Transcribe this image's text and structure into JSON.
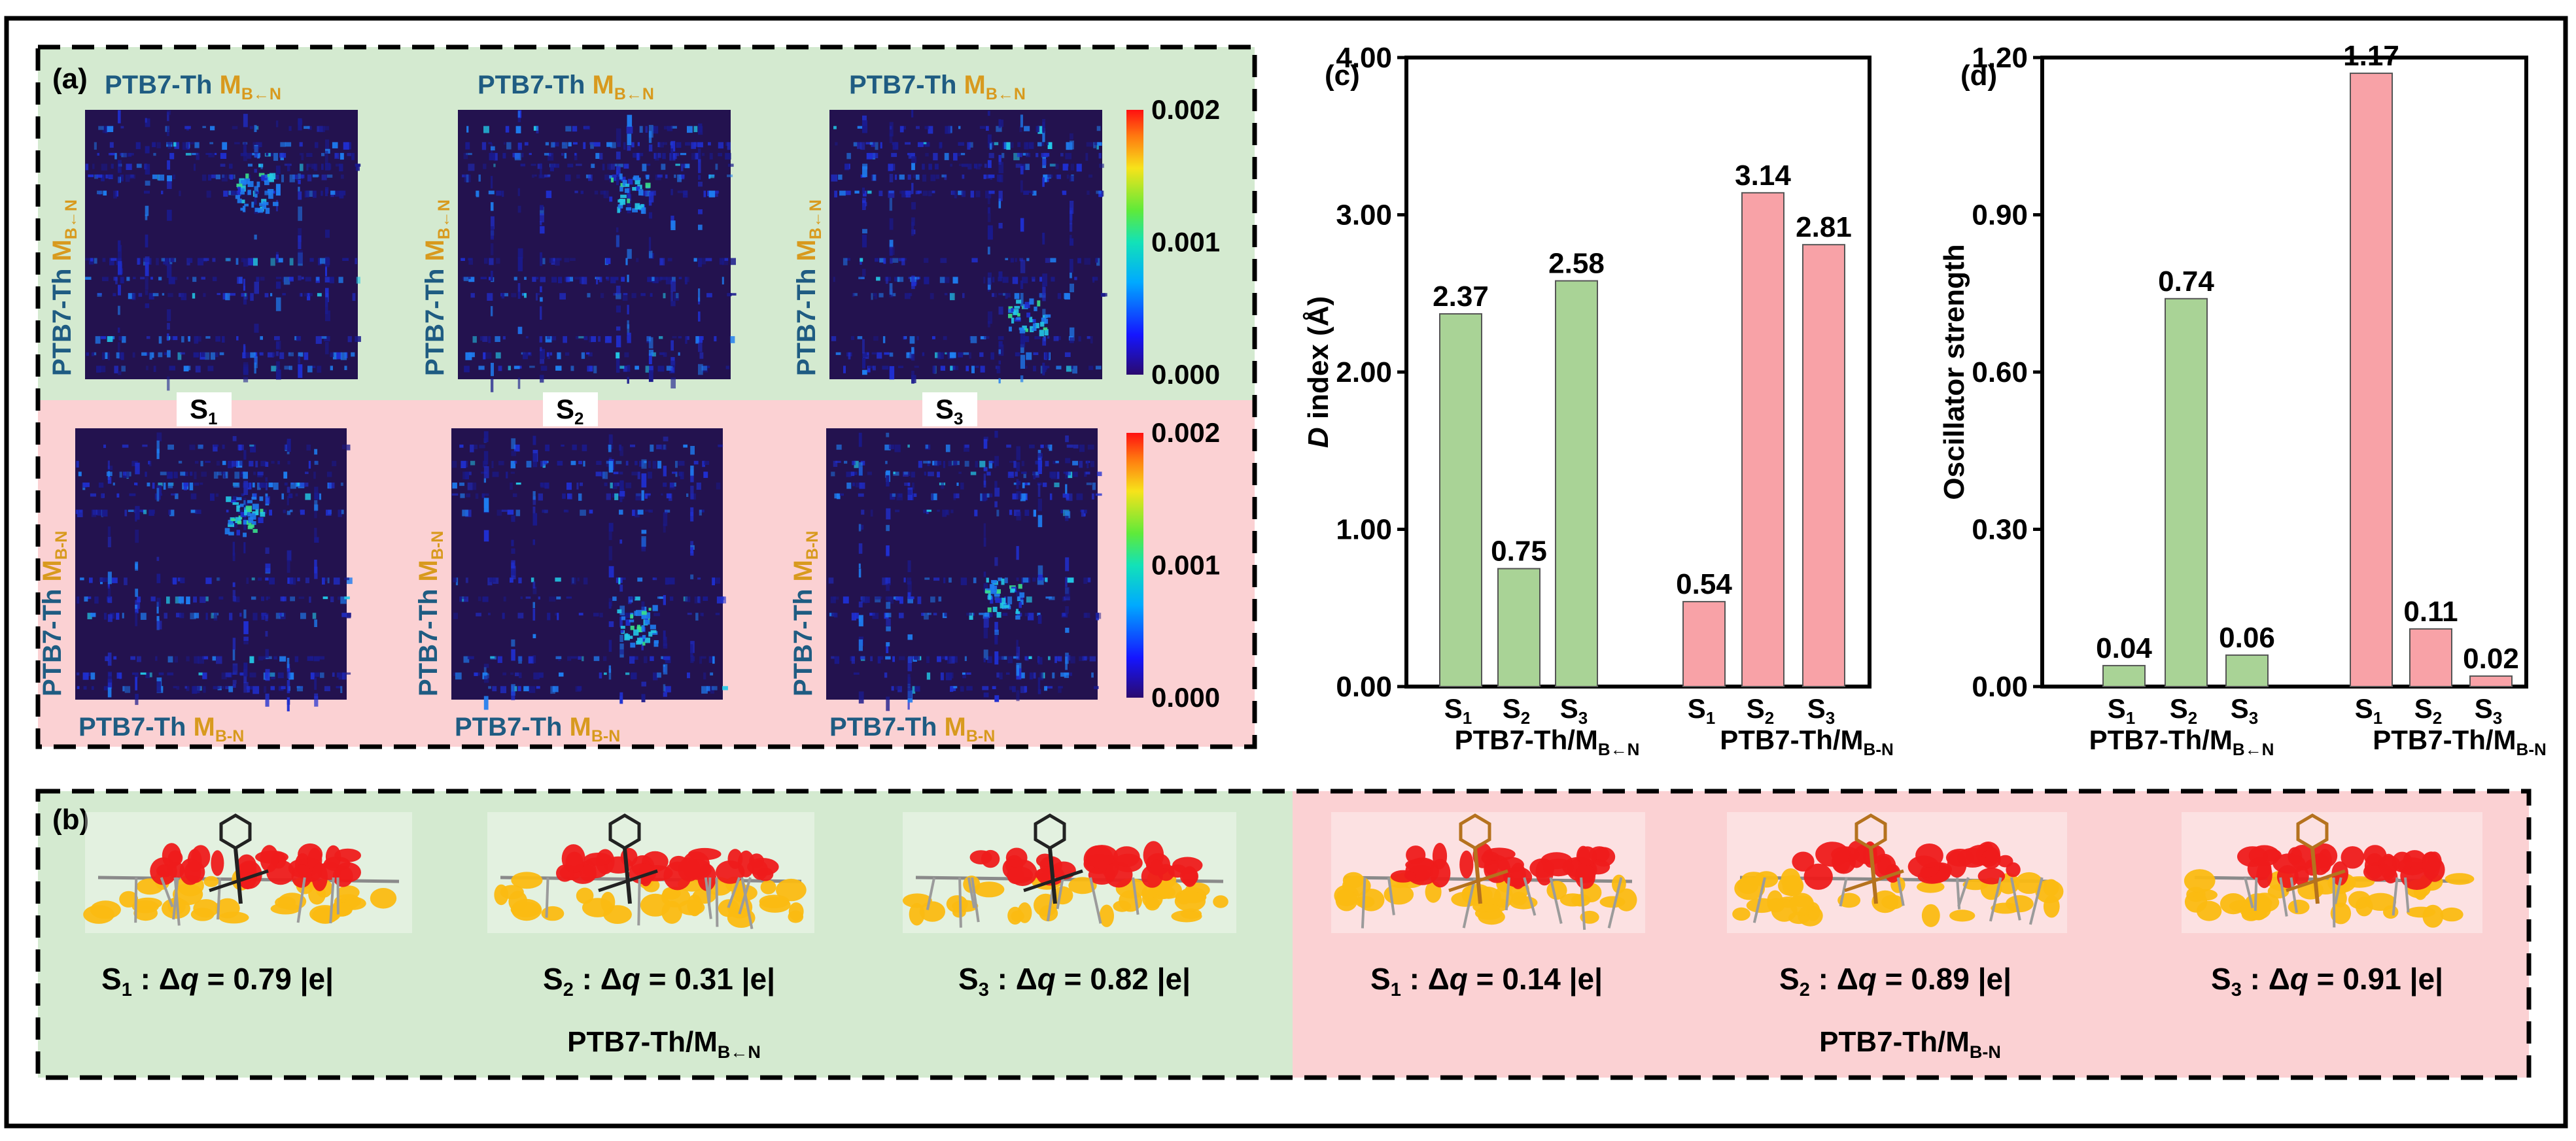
{
  "colors": {
    "green_bg": "#d4ead0",
    "pink_bg": "#fbd1d3",
    "green_bar": "#a9d396",
    "pink_bar": "#f8a2a7",
    "label_blue": "#1f5c82",
    "label_gold": "#d89a1e",
    "map_bg": "#23124f",
    "red_iso": "#ee1b1b",
    "yellow_iso": "#fbba12"
  },
  "panel_a": {
    "label": "(a)",
    "heatmaps": [
      {
        "top": "PTB7-Th",
        "top_suffix": "M",
        "top_sub": "B←N",
        "left_top": "M",
        "left_top_sub": "B←N",
        "left_bottom": "PTB7-Th",
        "variant": "s1a"
      },
      {
        "top": "PTB7-Th",
        "top_suffix": "M",
        "top_sub": "B←N",
        "left_top": "M",
        "left_top_sub": "B←N",
        "left_bottom": "PTB7-Th",
        "variant": "s2a"
      },
      {
        "top": "PTB7-Th",
        "top_suffix": "M",
        "top_sub": "B←N",
        "left_top": "M",
        "left_top_sub": "B←N",
        "left_bottom": "PTB7-Th",
        "variant": "s3a"
      },
      {
        "bottom": "PTB7-Th",
        "bottom_suffix": "M",
        "bottom_sub": "B-N",
        "left_top": "M",
        "left_top_sub": "B-N",
        "left_bottom": "PTB7-Th",
        "variant": "s1b"
      },
      {
        "bottom": "PTB7-Th",
        "bottom_suffix": "M",
        "bottom_sub": "B-N",
        "left_top": "M",
        "left_top_sub": "B-N",
        "left_bottom": "PTB7-Th",
        "variant": "s2b"
      },
      {
        "bottom": "PTB7-Th",
        "bottom_suffix": "M",
        "bottom_sub": "B-N",
        "left_top": "M",
        "left_top_sub": "B-N",
        "left_bottom": "PTB7-Th",
        "variant": "s3b"
      }
    ],
    "state_labels": [
      {
        "main": "S",
        "sub": "1"
      },
      {
        "main": "S",
        "sub": "2"
      },
      {
        "main": "S",
        "sub": "3"
      }
    ],
    "colorbar_ticks": [
      "0.002",
      "0.001",
      "0.000"
    ]
  },
  "chart_data": [
    {
      "type": "bar",
      "panel": "(c)",
      "ylabel_italic": "D",
      "ylabel_rest": " index (Å)",
      "ylim": [
        0,
        4
      ],
      "yticks": [
        "0.00",
        "1.00",
        "2.00",
        "3.00",
        "4.00"
      ],
      "ytick_values": [
        0,
        1,
        2,
        3,
        4
      ],
      "groups": [
        {
          "name": "PTB7-Th/M",
          "name_sub": "B←N",
          "color_key": "green_bar",
          "categories": [
            {
              "main": "S",
              "sub": "1"
            },
            {
              "main": "S",
              "sub": "2"
            },
            {
              "main": "S",
              "sub": "3"
            }
          ],
          "values": [
            2.37,
            0.75,
            2.58
          ],
          "labels": [
            "2.37",
            "0.75",
            "2.58"
          ]
        },
        {
          "name": "PTB7-Th/M",
          "name_sub": "B-N",
          "color_key": "pink_bar",
          "categories": [
            {
              "main": "S",
              "sub": "1"
            },
            {
              "main": "S",
              "sub": "2"
            },
            {
              "main": "S",
              "sub": "3"
            }
          ],
          "values": [
            0.54,
            3.14,
            2.81
          ],
          "labels": [
            "0.54",
            "3.14",
            "2.81"
          ]
        }
      ]
    },
    {
      "type": "bar",
      "panel": "(d)",
      "ylabel_italic": "",
      "ylabel_rest": "Oscillator strength",
      "ylim": [
        0,
        1.2
      ],
      "yticks": [
        "0.00",
        "0.30",
        "0.60",
        "0.90",
        "1.20"
      ],
      "ytick_values": [
        0,
        0.3,
        0.6,
        0.9,
        1.2
      ],
      "groups": [
        {
          "name": "PTB7-Th/M",
          "name_sub": "B←N",
          "color_key": "green_bar",
          "categories": [
            {
              "main": "S",
              "sub": "1"
            },
            {
              "main": "S",
              "sub": "2"
            },
            {
              "main": "S",
              "sub": "3"
            }
          ],
          "values": [
            0.04,
            0.74,
            0.06
          ],
          "labels": [
            "0.04",
            "0.74",
            "0.06"
          ]
        },
        {
          "name": "PTB7-Th/M",
          "name_sub": "B-N",
          "color_key": "pink_bar",
          "categories": [
            {
              "main": "S",
              "sub": "1"
            },
            {
              "main": "S",
              "sub": "2"
            },
            {
              "main": "S",
              "sub": "3"
            }
          ],
          "values": [
            1.17,
            0.11,
            0.02
          ],
          "labels": [
            "1.17",
            "0.11",
            "0.02"
          ]
        }
      ]
    }
  ],
  "panel_b": {
    "label": "(b)",
    "items": [
      {
        "s": "S",
        "sub": "1",
        "text": " : Δ",
        "q": "q",
        "value": " = 0.79 |e|",
        "variant": "green"
      },
      {
        "s": "S",
        "sub": "2",
        "text": " : Δ",
        "q": "q",
        "value": " = 0.31 |e|",
        "variant": "green"
      },
      {
        "s": "S",
        "sub": "3",
        "text": " : Δ",
        "q": "q",
        "value": " = 0.82 |e|",
        "variant": "green"
      },
      {
        "s": "S",
        "sub": "1",
        "text": " : Δ",
        "q": "q",
        "value": " = 0.14 |e|",
        "variant": "pink"
      },
      {
        "s": "S",
        "sub": "2",
        "text": " : Δ",
        "q": "q",
        "value": " = 0.89 |e|",
        "variant": "pink"
      },
      {
        "s": "S",
        "sub": "3",
        "text": " : Δ",
        "q": "q",
        "value": " = 0.91 |e|",
        "variant": "pink"
      }
    ],
    "group_labels": [
      {
        "main": "PTB7-Th/M",
        "sub": "B←N"
      },
      {
        "main": "PTB7-Th/M",
        "sub": "B-N"
      }
    ]
  }
}
